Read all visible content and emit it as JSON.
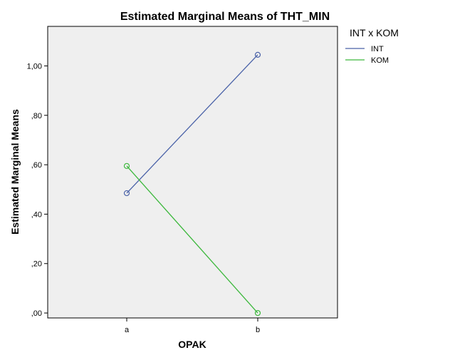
{
  "chart_data": {
    "type": "line",
    "title": "Estimated Marginal Means of THT_MIN",
    "xlabel": "OPAK",
    "ylabel": "Estimated Marginal Means",
    "categories": [
      "a",
      "b"
    ],
    "yticks": [
      0,
      0.2,
      0.4,
      0.6,
      0.8,
      1.0
    ],
    "ytick_labels": [
      ",00",
      ",20",
      ",40",
      ",60",
      ",80",
      "1,00"
    ],
    "ylim": [
      -0.02,
      1.16
    ],
    "grid": false,
    "legend": {
      "title": "INT x KOM",
      "placement": "right"
    },
    "series": [
      {
        "name": "INT",
        "color": "#4a62a8",
        "values": [
          0.485,
          1.045
        ]
      },
      {
        "name": "KOM",
        "color": "#3cb83c",
        "values": [
          0.595,
          0.0
        ]
      }
    ],
    "plot_background": "#efefef"
  }
}
